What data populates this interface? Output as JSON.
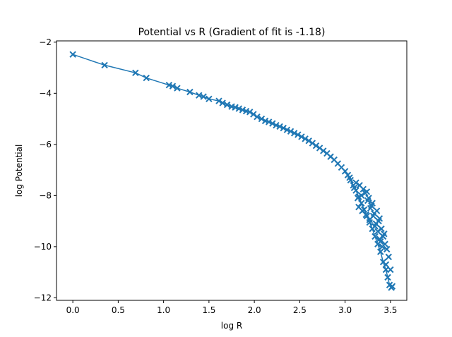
{
  "chart_data": {
    "type": "line",
    "title": "Potential vs R (Gradient of fit is -1.18)",
    "xlabel": "log R",
    "ylabel": "log Potential",
    "xlim": [
      -0.18,
      3.68
    ],
    "ylim": [
      -12.1,
      -1.95
    ],
    "xticks": [
      "0.0",
      "0.5",
      "1.0",
      "1.5",
      "2.0",
      "2.5",
      "3.0",
      "3.5"
    ],
    "yticks": [
      "−2",
      "−4",
      "−6",
      "−8",
      "−10",
      "−12"
    ],
    "xtick_values": [
      0,
      0.5,
      1.0,
      1.5,
      2.0,
      2.5,
      3.0,
      3.5
    ],
    "ytick_values": [
      -2,
      -4,
      -6,
      -8,
      -10,
      -12
    ],
    "grid": false,
    "legend": "none",
    "color": "#1f77b4",
    "series": [
      {
        "marker": "x",
        "x": [
          0.0,
          0.35,
          0.69,
          0.81,
          1.06,
          1.1,
          1.15,
          1.29,
          1.39,
          1.44,
          1.5,
          1.61,
          1.65,
          1.7,
          1.75,
          1.79,
          1.83,
          1.87,
          1.91,
          1.95,
          1.99,
          2.03,
          2.08,
          2.12,
          2.16,
          2.2,
          2.24,
          2.28,
          2.32,
          2.36,
          2.4,
          2.44,
          2.48,
          2.52,
          2.56,
          2.6,
          2.64,
          2.68,
          2.72,
          2.76,
          2.8,
          2.84,
          2.88,
          2.92,
          2.96,
          3.0,
          3.03,
          3.06,
          3.09,
          3.12,
          3.15,
          3.18,
          3.21,
          3.24,
          3.27,
          3.3,
          3.33,
          3.36,
          3.39,
          3.42,
          3.45,
          3.47,
          3.49,
          3.51
        ],
        "y": [
          -2.48,
          -2.9,
          -3.2,
          -3.4,
          -3.68,
          -3.72,
          -3.8,
          -3.95,
          -4.08,
          -4.13,
          -4.22,
          -4.3,
          -4.38,
          -4.45,
          -4.52,
          -4.55,
          -4.6,
          -4.65,
          -4.7,
          -4.73,
          -4.82,
          -4.92,
          -5.0,
          -5.08,
          -5.12,
          -5.18,
          -5.25,
          -5.3,
          -5.36,
          -5.43,
          -5.49,
          -5.56,
          -5.62,
          -5.7,
          -5.78,
          -5.86,
          -5.95,
          -6.05,
          -6.14,
          -6.25,
          -6.35,
          -6.48,
          -6.6,
          -6.75,
          -6.9,
          -7.05,
          -7.2,
          -7.4,
          -7.6,
          -7.8,
          -8.05,
          -8.3,
          -8.55,
          -8.8,
          -9.05,
          -9.3,
          -9.6,
          -9.9,
          -10.2,
          -10.6,
          -10.9,
          -11.2,
          -11.5,
          -11.6
        ]
      },
      {
        "marker": "x",
        "x": [
          3.05,
          3.1,
          3.14,
          3.18,
          3.22,
          3.25,
          3.28,
          3.3,
          3.32,
          3.35,
          3.37,
          3.38,
          3.4,
          3.42,
          3.43,
          3.44,
          3.46,
          3.48,
          3.5,
          3.52,
          3.12,
          3.16,
          3.2,
          3.24,
          3.26,
          3.29,
          3.31,
          3.34,
          3.36,
          3.38,
          3.15,
          3.19,
          3.23,
          3.27,
          3.33,
          3.39,
          3.41,
          3.45
        ],
        "y": [
          -7.3,
          -7.7,
          -8.1,
          -8.0,
          -7.9,
          -8.2,
          -8.5,
          -8.3,
          -8.7,
          -8.6,
          -9.0,
          -8.9,
          -9.3,
          -9.6,
          -9.5,
          -9.9,
          -10.1,
          -10.4,
          -10.9,
          -11.55,
          -7.5,
          -7.6,
          -7.75,
          -7.85,
          -8.1,
          -8.4,
          -8.8,
          -9.1,
          -9.4,
          -9.7,
          -8.45,
          -8.6,
          -8.75,
          -8.95,
          -9.2,
          -9.8,
          -10.0,
          -10.7
        ]
      }
    ]
  }
}
